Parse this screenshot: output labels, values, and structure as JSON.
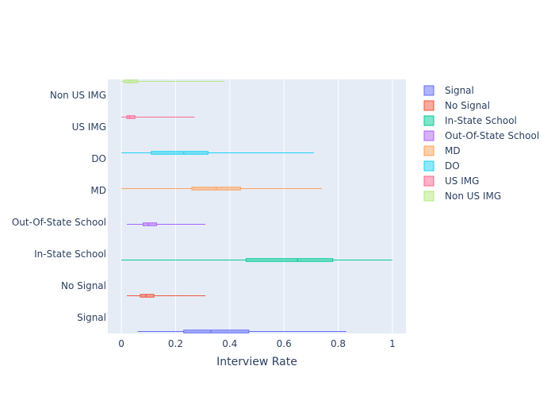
{
  "chart_data": {
    "type": "box",
    "orientation": "horizontal",
    "xlabel": "Interview Rate",
    "xlim": [
      -0.05,
      1.05
    ],
    "xticks": [
      {
        "value": 0,
        "label": "0"
      },
      {
        "value": 0.2,
        "label": "0.2"
      },
      {
        "value": 0.4,
        "label": "0.4"
      },
      {
        "value": 0.6,
        "label": "0.6"
      },
      {
        "value": 0.8,
        "label": "0.8"
      },
      {
        "value": 1,
        "label": "1"
      }
    ],
    "categories": [
      "Signal",
      "No Signal",
      "In-State School",
      "Out-Of-State School",
      "MD",
      "DO",
      "US IMG",
      "Non US IMG"
    ],
    "legend_position": "right",
    "series": [
      {
        "name": "Signal",
        "color": "#636efa",
        "min": 0.06,
        "q1": 0.23,
        "median": 0.33,
        "q3": 0.47,
        "max": 0.83
      },
      {
        "name": "No Signal",
        "color": "#EF553B",
        "min": 0.02,
        "q1": 0.07,
        "median": 0.09,
        "q3": 0.12,
        "max": 0.31
      },
      {
        "name": "In-State School",
        "color": "#00cc96",
        "min": 0.0,
        "q1": 0.46,
        "median": 0.65,
        "q3": 0.78,
        "max": 1.0
      },
      {
        "name": "Out-Of-State School",
        "color": "#ab63fa",
        "min": 0.02,
        "q1": 0.08,
        "median": 0.1,
        "q3": 0.13,
        "max": 0.31
      },
      {
        "name": "MD",
        "color": "#FFA15A",
        "min": 0.0,
        "q1": 0.26,
        "median": 0.35,
        "q3": 0.44,
        "max": 0.74
      },
      {
        "name": "DO",
        "color": "#19d3f3",
        "min": 0.0,
        "q1": 0.11,
        "median": 0.23,
        "q3": 0.32,
        "max": 0.71
      },
      {
        "name": "US IMG",
        "color": "#FF6692",
        "min": 0.0,
        "q1": 0.02,
        "median": 0.03,
        "q3": 0.05,
        "max": 0.27
      },
      {
        "name": "Non US IMG",
        "color": "#B6E880",
        "min": 0.0,
        "q1": 0.01,
        "median": 0.03,
        "q3": 0.06,
        "max": 0.38
      }
    ]
  }
}
